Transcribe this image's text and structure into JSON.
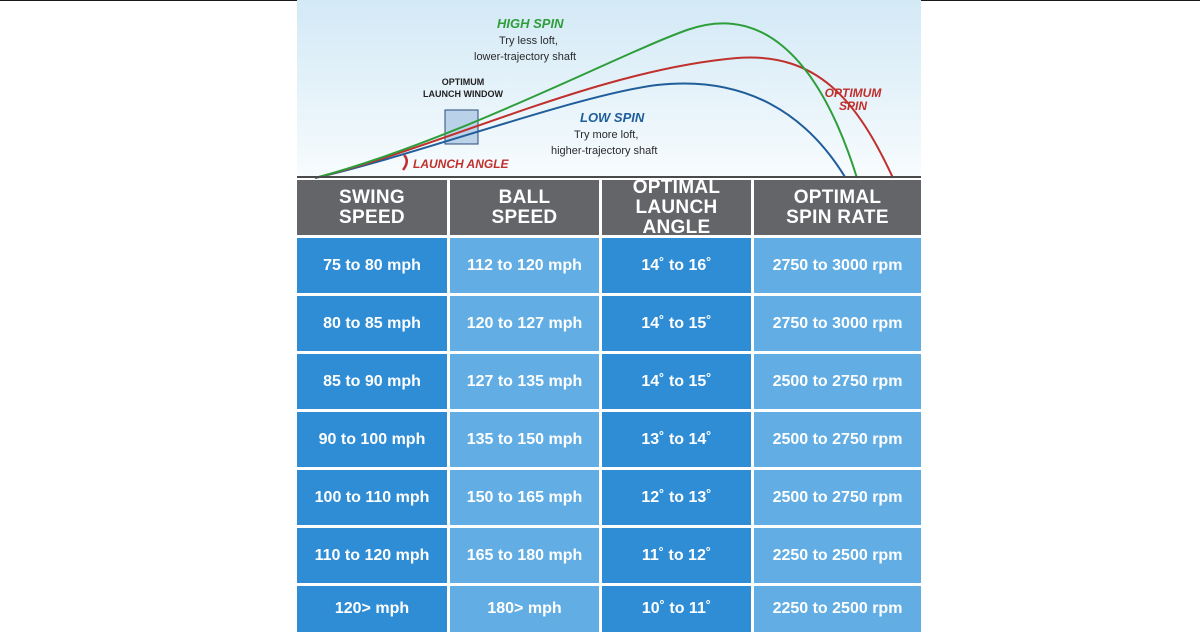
{
  "diagram": {
    "high_spin": {
      "title": "HIGH SPIN",
      "line1": "Try less loft,",
      "line2": "lower-trajectory shaft",
      "color": "#2e9e3a"
    },
    "low_spin": {
      "title": "LOW SPIN",
      "line1": "Try more loft,",
      "line2": "higher-trajectory shaft",
      "color": "#1f5e9a"
    },
    "optimum_spin": {
      "line1": "OPTIMUM",
      "line2": "SPIN",
      "color": "#c0302c"
    },
    "launch_window": {
      "line1": "OPTIMUM",
      "line2": "LAUNCH WINDOW"
    },
    "launch_angle": {
      "label": "LAUNCH ANGLE",
      "color": "#c0302c"
    }
  },
  "table": {
    "headers": [
      [
        "SWING",
        "SPEED"
      ],
      [
        "BALL",
        "SPEED"
      ],
      [
        "OPTIMAL",
        "LAUNCH ANGLE"
      ],
      [
        "OPTIMAL",
        "SPIN RATE"
      ]
    ],
    "rows": [
      [
        "75 to 80 mph",
        "112 to 120 mph",
        "14˚ to 16˚",
        "2750 to 3000 rpm"
      ],
      [
        "80 to 85 mph",
        "120 to 127 mph",
        "14˚ to 15˚",
        "2750 to 3000 rpm"
      ],
      [
        "85 to 90 mph",
        "127 to 135 mph",
        "14˚ to 15˚",
        "2500 to 2750 rpm"
      ],
      [
        "90 to 100 mph",
        "135 to 150 mph",
        "13˚ to 14˚",
        "2500 to 2750 rpm"
      ],
      [
        "100 to 110 mph",
        "150 to 165 mph",
        "12˚ to 13˚",
        "2500 to 2750 rpm"
      ],
      [
        "110 to 120 mph",
        "165 to 180 mph",
        "11˚ to 12˚",
        "2250 to 2500 rpm"
      ],
      [
        "120> mph",
        "180> mph",
        "10˚ to 11˚",
        "2250 to 2500 rpm"
      ]
    ],
    "colors": {
      "header": "#636569",
      "dark_cell": "#2f8dd6",
      "light_cell": "#62aee4"
    }
  }
}
